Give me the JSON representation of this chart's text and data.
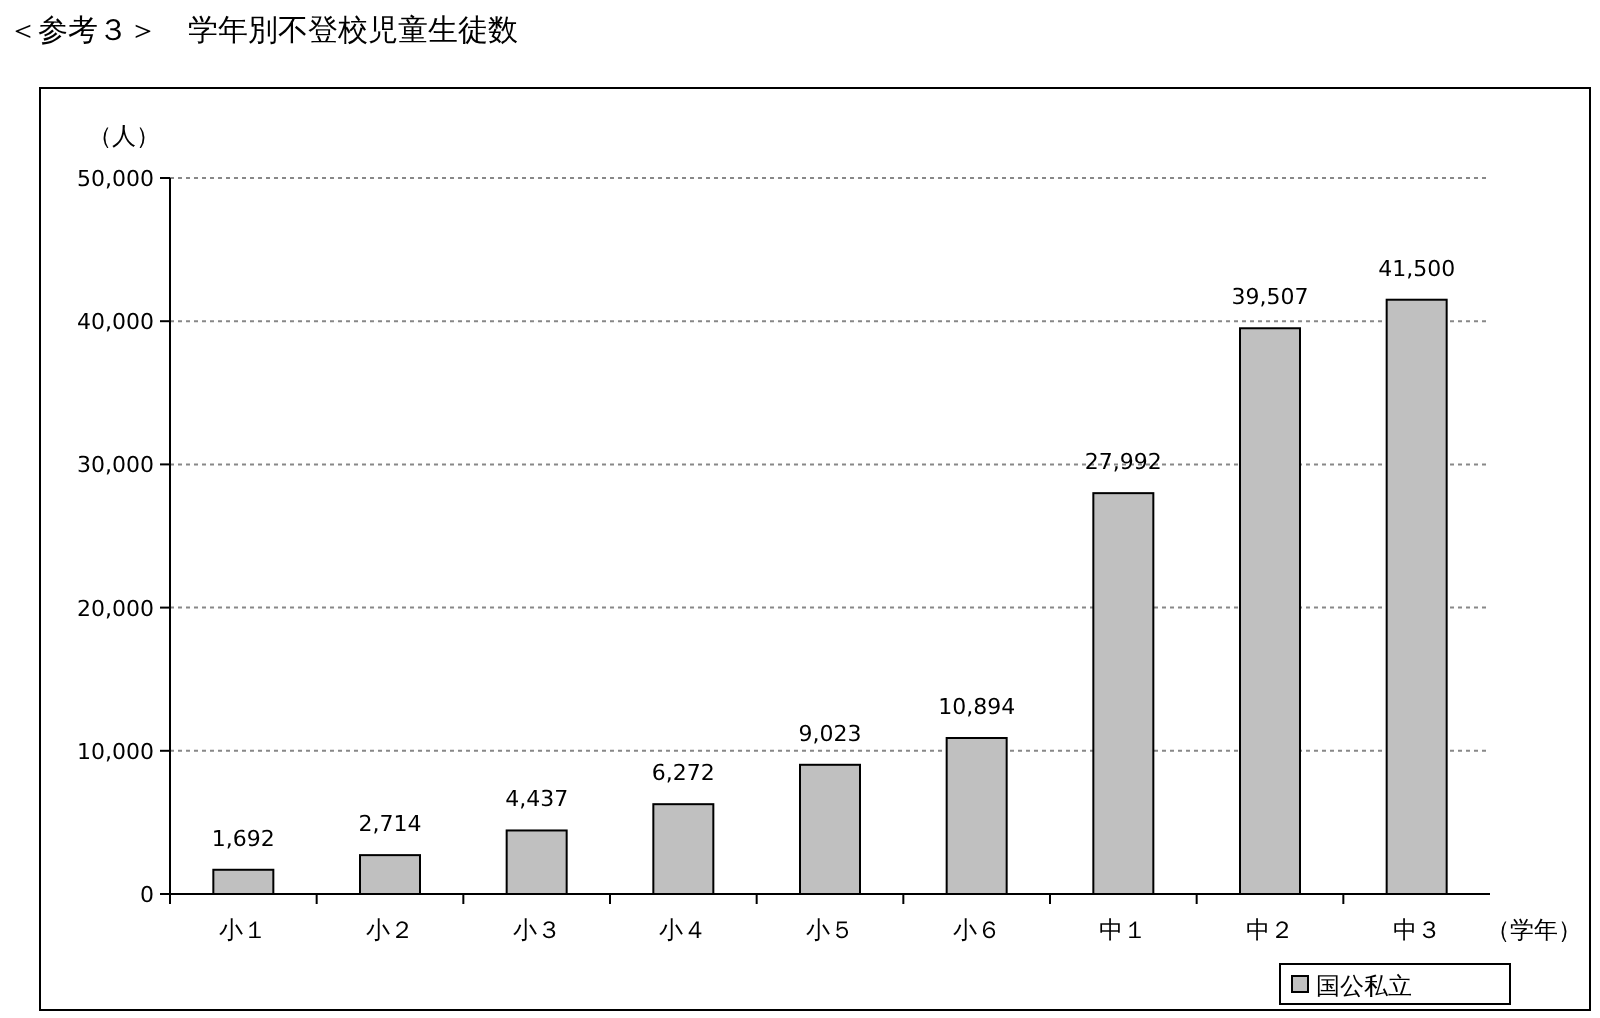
{
  "chart_data": {
    "type": "bar",
    "title": "＜参考３＞　学年別不登校児童生徒数",
    "ylabel": "（人）",
    "xlabel": "（学年）",
    "categories": [
      "小１",
      "小２",
      "小３",
      "小４",
      "小５",
      "小６",
      "中１",
      "中２",
      "中３"
    ],
    "series": [
      {
        "name": "国公私立",
        "color": "#c0c0c0",
        "values": [
          1692,
          2714,
          4437,
          6272,
          9023,
          10894,
          27992,
          39507,
          41500
        ]
      }
    ],
    "ylim": [
      0,
      50000
    ],
    "yticks": [
      {
        "value": 0,
        "label": "0"
      },
      {
        "value": 10000,
        "label": "10,000"
      },
      {
        "value": 20000,
        "label": "20,000"
      },
      {
        "value": 30000,
        "label": "30,000"
      },
      {
        "value": 40000,
        "label": "40,000"
      },
      {
        "value": 50000,
        "label": "50,000"
      }
    ],
    "value_labels": [
      "1,692",
      "2,714",
      "4,437",
      "6,272",
      "9,023",
      "10,894",
      "27,992",
      "39,507",
      "41,500"
    ],
    "grid": "y",
    "legend": "bottom right"
  }
}
